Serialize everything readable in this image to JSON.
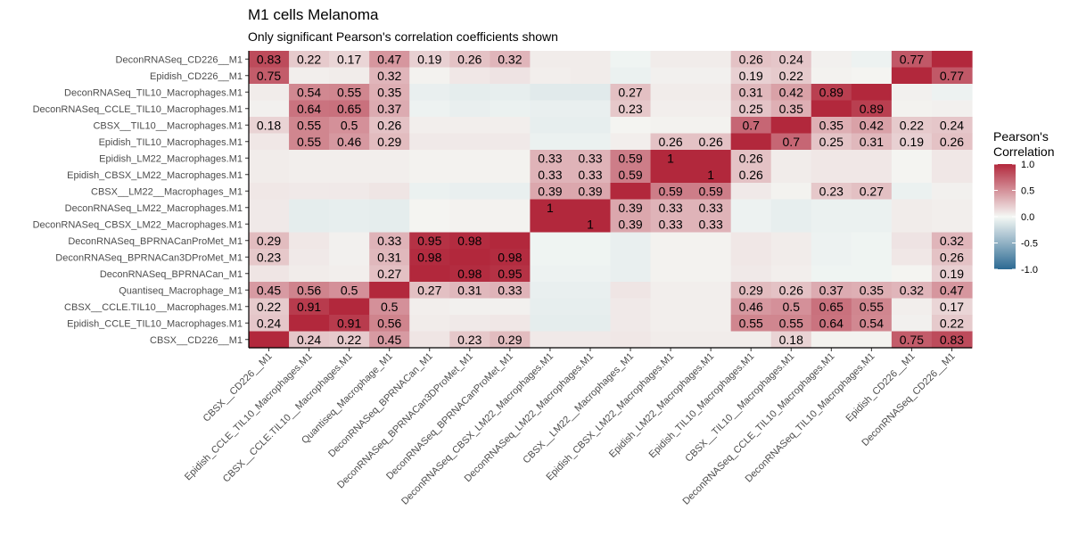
{
  "chart_data": {
    "type": "heatmap",
    "title": "M1 cells Melanoma",
    "subtitle": "Only significant Pearson's correlation coefficients shown",
    "rows": [
      "DeconRNASeq_CD226__M1",
      "Epidish_CD226__M1",
      "DeconRNASeq_TIL10_Macrophages.M1",
      "DeconRNASeq_CCLE_TIL10_Macrophages.M1",
      "CBSX__TIL10__Macrophages.M1",
      "Epidish_TIL10_Macrophages.M1",
      "Epidish_LM22_Macrophages.M1",
      "Epidish_CBSX_LM22_Macrophages.M1",
      "CBSX__LM22__Macrophages_M1",
      "DeconRNASeq_LM22_Macrophages.M1",
      "DeconRNASeq_CBSX_LM22_Macrophages.M1",
      "DeconRNASeq_BPRNACanProMet_M1",
      "DeconRNASeq_BPRNACan3DProMet_M1",
      "DeconRNASeq_BPRNACan_M1",
      "Quantiseq_Macrophage_M1",
      "CBSX__CCLE.TIL10__Macrophages.M1",
      "Epidish_CCLE_TIL10_Macrophages.M1",
      "CBSX__CD226__M1"
    ],
    "columns": [
      "CBSX__CD226__M1",
      "Epidish_CCLE_TIL10_Macrophages.M1",
      "CBSX__CCLE.TIL10__Macrophages.M1",
      "Quantiseq_Macrophage_M1",
      "DeconRNASeq_BPRNACan_M1",
      "DeconRNASeq_BPRNACan3DProMet_M1",
      "DeconRNASeq_BPRNACanProMet_M1",
      "DeconRNASeq_CBSX_LM22_Macrophages.M1",
      "DeconRNASeq_LM22_Macrophages.M1",
      "CBSX__LM22__Macrophages_M1",
      "Epidish_CBSX_LM22_Macrophages.M1",
      "Epidish_LM22_Macrophages.M1",
      "Epidish_TIL10_Macrophages.M1",
      "CBSX__TIL10__Macrophages.M1",
      "DeconRNASeq_CCLE_TIL10_Macrophages.M1",
      "DeconRNASeq_TIL10_Macrophages.M1",
      "Epidish_CD226__M1",
      "DeconRNASeq_CD226__M1"
    ],
    "values": [
      [
        0.83,
        0.22,
        0.17,
        0.47,
        0.19,
        0.26,
        0.32,
        0.06,
        0.06,
        -0.03,
        0.06,
        0.06,
        0.26,
        0.24,
        0.04,
        -0.04,
        0.77,
        1
      ],
      [
        0.75,
        0.05,
        0.06,
        0.32,
        0.03,
        0.08,
        0.1,
        0.05,
        0.06,
        -0.05,
        0.04,
        0.04,
        0.19,
        0.22,
        0.03,
        0.02,
        1,
        0.77
      ],
      [
        0.06,
        0.54,
        0.55,
        0.35,
        -0.06,
        -0.08,
        -0.07,
        -0.1,
        -0.1,
        0.27,
        0.06,
        0.06,
        0.31,
        0.42,
        0.89,
        1,
        0.04,
        -0.04
      ],
      [
        0.04,
        0.64,
        0.65,
        0.37,
        -0.04,
        -0.06,
        -0.05,
        -0.06,
        -0.06,
        0.23,
        0.05,
        0.05,
        0.25,
        0.35,
        1,
        0.89,
        0.03,
        0.04
      ],
      [
        0.18,
        0.55,
        0.5,
        0.26,
        0.05,
        0.05,
        0.05,
        -0.07,
        -0.07,
        0.02,
        0.03,
        0.03,
        0.7,
        1,
        0.35,
        0.42,
        0.22,
        0.24
      ],
      [
        0.08,
        0.55,
        0.46,
        0.29,
        0.07,
        0.07,
        0.07,
        -0.05,
        -0.05,
        0.05,
        0.26,
        0.26,
        1,
        0.7,
        0.25,
        0.31,
        0.19,
        0.26
      ],
      [
        0.06,
        0.05,
        0.05,
        0.05,
        0.03,
        0.03,
        0.03,
        0.33,
        0.33,
        0.59,
        1,
        1,
        0.26,
        0.06,
        0.08,
        0.08,
        0.02,
        0.08
      ],
      [
        0.06,
        0.05,
        0.05,
        0.05,
        0.03,
        0.03,
        0.03,
        0.33,
        0.33,
        0.59,
        1,
        1,
        0.26,
        0.06,
        0.08,
        0.08,
        0.02,
        0.08
      ],
      [
        0.08,
        0.07,
        0.07,
        0.09,
        -0.05,
        -0.06,
        -0.06,
        0.39,
        0.39,
        1,
        0.59,
        0.59,
        0.07,
        0.03,
        0.23,
        0.27,
        -0.05,
        0.04
      ],
      [
        0.07,
        -0.08,
        -0.07,
        -0.08,
        0.02,
        0.03,
        0.03,
        1,
        1,
        0.39,
        0.33,
        0.33,
        -0.04,
        -0.07,
        -0.05,
        -0.05,
        0.06,
        0.05
      ],
      [
        0.07,
        -0.08,
        -0.07,
        -0.08,
        0.02,
        0.03,
        0.03,
        1,
        1,
        0.39,
        0.33,
        0.33,
        -0.04,
        -0.07,
        -0.05,
        -0.05,
        0.06,
        0.05
      ],
      [
        0.29,
        0.08,
        0.04,
        0.33,
        0.95,
        0.98,
        1,
        -0.03,
        -0.03,
        -0.06,
        0.03,
        0.03,
        0.08,
        0.06,
        -0.04,
        -0.03,
        0.1,
        0.32
      ],
      [
        0.23,
        0.07,
        0.04,
        0.31,
        0.98,
        1,
        0.98,
        -0.03,
        -0.03,
        -0.06,
        0.03,
        0.03,
        0.08,
        0.06,
        -0.04,
        -0.03,
        0.08,
        0.26
      ],
      [
        0.09,
        0.06,
        0.05,
        0.27,
        1,
        0.98,
        0.95,
        -0.04,
        -0.04,
        -0.06,
        0.03,
        0.03,
        0.07,
        0.05,
        -0.03,
        -0.03,
        0.02,
        0.19
      ],
      [
        0.45,
        0.56,
        0.5,
        1,
        0.27,
        0.31,
        0.33,
        -0.06,
        -0.06,
        0.09,
        0.05,
        0.05,
        0.29,
        0.26,
        0.37,
        0.35,
        0.32,
        0.47
      ],
      [
        0.22,
        0.91,
        1,
        0.5,
        0.05,
        0.04,
        0.04,
        -0.07,
        -0.07,
        0.07,
        0.05,
        0.05,
        0.46,
        0.5,
        0.65,
        0.55,
        0.05,
        0.17
      ],
      [
        0.24,
        1,
        0.91,
        0.56,
        0.06,
        0.07,
        0.08,
        -0.08,
        -0.08,
        0.07,
        0.05,
        0.05,
        0.55,
        0.55,
        0.64,
        0.54,
        0.04,
        0.22
      ],
      [
        1,
        0.24,
        0.22,
        0.45,
        0.09,
        0.23,
        0.29,
        0.07,
        0.07,
        0.08,
        0.06,
        0.06,
        0.06,
        0.18,
        0.03,
        0.03,
        0.75,
        0.83
      ]
    ],
    "labels": [
      [
        "0.83",
        "0.22",
        "0.17",
        "0.47",
        "0.19",
        "0.26",
        "0.32",
        "",
        "",
        "",
        "",
        "",
        "0.26",
        "0.24",
        "",
        "",
        "0.77",
        ""
      ],
      [
        "0.75",
        "",
        "",
        "0.32",
        "",
        "",
        "",
        "",
        "",
        "",
        "",
        "",
        "0.19",
        "0.22",
        "",
        "",
        "",
        "0.77"
      ],
      [
        "",
        "0.54",
        "0.55",
        "0.35",
        "",
        "",
        "",
        "",
        "",
        "0.27",
        "",
        "",
        "0.31",
        "0.42",
        "0.89",
        "",
        "",
        ""
      ],
      [
        "",
        "0.64",
        "0.65",
        "0.37",
        "",
        "",
        "",
        "",
        "",
        "0.23",
        "",
        "",
        "0.25",
        "0.35",
        "",
        "0.89",
        "",
        ""
      ],
      [
        "0.18",
        "0.55",
        "0.5",
        "0.26",
        "",
        "",
        "",
        "",
        "",
        "",
        "",
        "",
        "0.7",
        "",
        "0.35",
        "0.42",
        "0.22",
        "0.24"
      ],
      [
        "",
        "0.55",
        "0.46",
        "0.29",
        "",
        "",
        "",
        "",
        "",
        "",
        "0.26",
        "0.26",
        "",
        "0.7",
        "0.25",
        "0.31",
        "0.19",
        "0.26"
      ],
      [
        "",
        "",
        "",
        "",
        "",
        "",
        "",
        "0.33",
        "0.33",
        "0.59",
        "1",
        "",
        "0.26",
        "",
        "",
        "",
        "",
        ""
      ],
      [
        "",
        "",
        "",
        "",
        "",
        "",
        "",
        "0.33",
        "0.33",
        "0.59",
        "",
        "1",
        "0.26",
        "",
        "",
        "",
        "",
        ""
      ],
      [
        "",
        "",
        "",
        "",
        "",
        "",
        "",
        "0.39",
        "0.39",
        "",
        "0.59",
        "0.59",
        "",
        "",
        "0.23",
        "0.27",
        "",
        ""
      ],
      [
        "",
        "",
        "",
        "",
        "",
        "",
        "",
        "1",
        "",
        "0.39",
        "0.33",
        "0.33",
        "",
        "",
        "",
        "",
        "",
        ""
      ],
      [
        "",
        "",
        "",
        "",
        "",
        "",
        "",
        "",
        "1",
        "0.39",
        "0.33",
        "0.33",
        "",
        "",
        "",
        "",
        "",
        ""
      ],
      [
        "0.29",
        "",
        "",
        "0.33",
        "0.95",
        "0.98",
        "",
        "",
        "",
        "",
        "",
        "",
        "",
        "",
        "",
        "",
        "",
        "0.32"
      ],
      [
        "0.23",
        "",
        "",
        "0.31",
        "0.98",
        "",
        "0.98",
        "",
        "",
        "",
        "",
        "",
        "",
        "",
        "",
        "",
        "",
        "0.26"
      ],
      [
        "",
        "",
        "",
        "0.27",
        "",
        "0.98",
        "0.95",
        "",
        "",
        "",
        "",
        "",
        "",
        "",
        "",
        "",
        "",
        "0.19"
      ],
      [
        "0.45",
        "0.56",
        "0.5",
        "",
        "0.27",
        "0.31",
        "0.33",
        "",
        "",
        "",
        "",
        "",
        "0.29",
        "0.26",
        "0.37",
        "0.35",
        "0.32",
        "0.47"
      ],
      [
        "0.22",
        "0.91",
        "",
        "0.5",
        "",
        "",
        "",
        "",
        "",
        "",
        "",
        "",
        "0.46",
        "0.5",
        "0.65",
        "0.55",
        "",
        "0.17"
      ],
      [
        "0.24",
        "",
        "0.91",
        "0.56",
        "",
        "",
        "",
        "",
        "",
        "",
        "",
        "",
        "0.55",
        "0.55",
        "0.64",
        "0.54",
        "",
        "0.22"
      ],
      [
        "",
        "0.24",
        "0.22",
        "0.45",
        "",
        "0.23",
        "0.29",
        "",
        "",
        "",
        "",
        "",
        "",
        "0.18",
        "",
        "",
        "0.75",
        "0.83"
      ]
    ],
    "legend": {
      "title_lines": [
        "Pearson's",
        "Correlation"
      ],
      "ticks": [
        "1.0",
        "0.5",
        "0.0",
        "-0.5",
        "-1.0"
      ],
      "placement": "right"
    },
    "scale": {
      "min": -1,
      "max": 1
    },
    "colors": {
      "low": "#2c6a93",
      "mid": "#f5f8f5",
      "high": "#b2283c"
    }
  }
}
